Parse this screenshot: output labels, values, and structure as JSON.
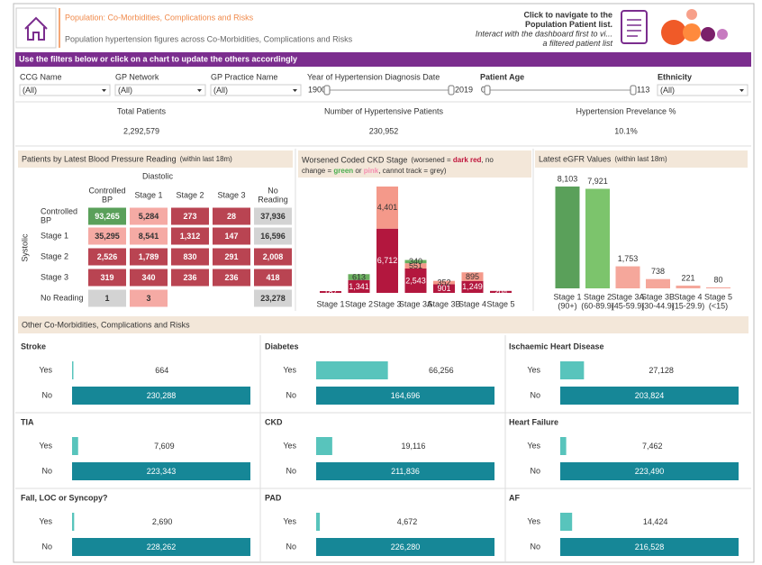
{
  "header": {
    "title": "Population: Co-Morbidities, Complications and Risks",
    "subtitle": "Population hypertension figures across Co-Morbidities, Complications and Risks",
    "nav_lines": [
      "Click to navigate to the",
      "Population Patient list.",
      "Interact with the dashboard first to vi...",
      "a filtered patient list"
    ]
  },
  "banner": "Use the filters below or click on a chart to update the others accordingly",
  "filters": [
    {
      "label": "CCG Name",
      "value": "(All)"
    },
    {
      "label": "GP Network",
      "value": "(All)"
    },
    {
      "label": "GP Practice Name",
      "value": "(All)"
    },
    {
      "label": "Year of Hypertension Diagnosis Date",
      "range": [
        1900,
        2019
      ]
    },
    {
      "label": "Patient Age",
      "range": [
        0,
        113
      ]
    },
    {
      "label": "Ethnicity",
      "value": "(All)"
    }
  ],
  "kpis": [
    {
      "label": "Total Patients",
      "value": "2,292,579"
    },
    {
      "label": "Number of Hypertensive Patients",
      "value": "230,952"
    },
    {
      "label": "Hypertension Prevelance %",
      "value": "10.1%"
    }
  ],
  "bp_chart": {
    "title": "Patients by Latest Blood Pressure Reading",
    "subtitle": "(within last 18m)",
    "x_label": "Diastolic",
    "y_label": "Systolic",
    "columns": [
      [
        "Controlled",
        "BP"
      ],
      [
        "Stage 1"
      ],
      [
        "Stage 2"
      ],
      [
        "Stage 3"
      ],
      [
        "No",
        "Reading"
      ]
    ],
    "rows": [
      [
        "Controlled",
        "BP"
      ],
      [
        "Stage 1"
      ],
      [
        "Stage 2"
      ],
      [
        "Stage 3"
      ],
      [
        "No Reading"
      ]
    ],
    "values": [
      [
        93265,
        5284,
        273,
        28,
        37936
      ],
      [
        35295,
        8541,
        1312,
        147,
        16596
      ],
      [
        2526,
        1789,
        830,
        291,
        2008
      ],
      [
        319,
        340,
        236,
        236,
        418
      ],
      [
        1,
        3,
        null,
        null,
        23278
      ]
    ],
    "value_labels": [
      [
        "93,265",
        "5,284",
        "273",
        "28",
        "37,936"
      ],
      [
        "35,295",
        "8,541",
        "1,312",
        "147",
        "16,596"
      ],
      [
        "2,526",
        "1,789",
        "830",
        "291",
        "2,008"
      ],
      [
        "319",
        "340",
        "236",
        "236",
        "418"
      ],
      [
        "1",
        "3",
        null,
        null,
        "23,278"
      ]
    ],
    "palette": {
      "green": "#5aa05a",
      "pink": "#f5aaa4",
      "red": "#b94452",
      "grey": "#d3d3d3"
    },
    "cell_colors": [
      [
        "green",
        "pink",
        "red",
        "red",
        "grey"
      ],
      [
        "pink",
        "pink",
        "red",
        "red",
        "grey"
      ],
      [
        "red",
        "red",
        "red",
        "red",
        "red"
      ],
      [
        "red",
        "red",
        "red",
        "red",
        "red"
      ],
      [
        "grey",
        "pink",
        null,
        null,
        "grey"
      ]
    ]
  },
  "ckd_chart": {
    "type": "bar",
    "title": "Worsened Coded CKD Stage",
    "note_lines": [
      [
        {
          "text": "(worsened = "
        },
        {
          "text": "dark red",
          "color": "#c0143c"
        },
        {
          "text": ", no"
        }
      ],
      [
        {
          "text": "change = "
        },
        {
          "text": "green",
          "color": "#4caf50"
        },
        {
          "text": " or "
        },
        {
          "text": "pink",
          "color": "#f48fb1"
        },
        {
          "text": ", cannot track = grey)"
        }
      ]
    ],
    "categories": [
      "Stage 1",
      "Stage 2",
      "Stage 3",
      "Stage 3A",
      "Stage 3B",
      "Stage 4",
      "Stage 5"
    ],
    "series": [
      {
        "color": "#b3173e",
        "values": [
          187,
          1341,
          6712,
          2543,
          901,
          1249,
          204
        ]
      },
      {
        "color": "#f4998a",
        "values": [
          null,
          null,
          4401,
          551,
          352,
          895,
          null
        ]
      },
      {
        "color": "#6aaf5f",
        "values": [
          null,
          613,
          null,
          340,
          null,
          null,
          null
        ]
      }
    ],
    "value_labels": [
      [
        "187",
        "1,341",
        "6,712",
        "2,543",
        "901",
        "1,249",
        "204"
      ],
      [
        null,
        null,
        "4,401",
        "551",
        "352",
        "895",
        null
      ],
      [
        null,
        "613",
        null,
        "340",
        null,
        null,
        null
      ]
    ]
  },
  "egfr_chart": {
    "type": "bar",
    "title": "Latest eGFR Values",
    "subtitle": "(within last 18m)",
    "categories": [
      [
        "Stage 1",
        "(90+)"
      ],
      [
        "Stage 2",
        "(60-89.9)"
      ],
      [
        "Stage 3A",
        "(45-59.9)"
      ],
      [
        "Stage 3B",
        "(30-44.9)"
      ],
      [
        "Stage 4",
        "(15-29.9)"
      ],
      [
        "Stage 5",
        "(<15)"
      ]
    ],
    "values": [
      8103,
      7921,
      1753,
      738,
      221,
      80
    ],
    "value_labels": [
      "8,103",
      "7,921",
      "1,753",
      "738",
      "221",
      "80"
    ],
    "colors": [
      "#5aa05a",
      "#7cc46c",
      "#f5a79b",
      "#f5a79b",
      "#f5a79b",
      "#f5a79b"
    ]
  },
  "comorbidities": {
    "title": "Other Co-Morbidities, Complications and Risks",
    "categories": [
      "Yes",
      "No"
    ],
    "colors": [
      "#58c4bc",
      "#168797"
    ],
    "panels": [
      {
        "title": "Stroke",
        "values": [
          664,
          230288
        ],
        "value_labels": [
          "664",
          "230,288"
        ]
      },
      {
        "title": "Diabetes",
        "values": [
          66256,
          164696
        ],
        "value_labels": [
          "66,256",
          "164,696"
        ]
      },
      {
        "title": "Ischaemic Heart Disease",
        "values": [
          27128,
          203824
        ],
        "value_labels": [
          "27,128",
          "203,824"
        ]
      },
      {
        "title": "TIA",
        "values": [
          7609,
          223343
        ],
        "value_labels": [
          "7,609",
          "223,343"
        ]
      },
      {
        "title": "CKD",
        "values": [
          19116,
          211836
        ],
        "value_labels": [
          "19,116",
          "211,836"
        ]
      },
      {
        "title": "Heart Failure",
        "values": [
          7462,
          223490
        ],
        "value_labels": [
          "7,462",
          "223,490"
        ]
      },
      {
        "title": "Fall, LOC or Syncopy?",
        "values": [
          2690,
          228262
        ],
        "value_labels": [
          "2,690",
          "228,262"
        ]
      },
      {
        "title": "PAD",
        "values": [
          4672,
          226280
        ],
        "value_labels": [
          "4,672",
          "226,280"
        ]
      },
      {
        "title": "AF",
        "values": [
          14424,
          216528
        ],
        "value_labels": [
          "14,424",
          "216,528"
        ]
      }
    ]
  }
}
